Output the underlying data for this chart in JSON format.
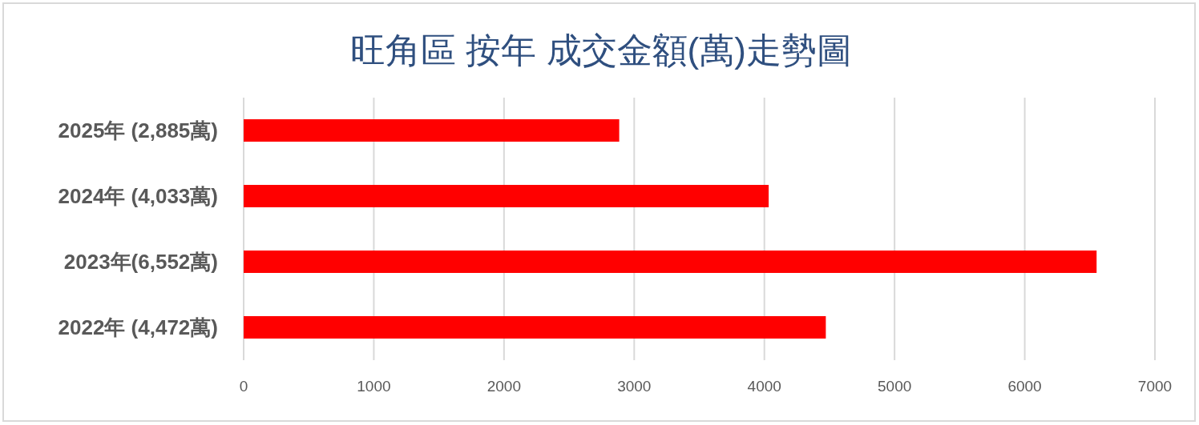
{
  "chart_data": {
    "type": "bar",
    "orientation": "horizontal",
    "title": "旺角區 按年 成交金額(萬)走勢圖",
    "categories": [
      "2025年 (2,885萬)",
      "2024年 (4,033萬)",
      "2023年(6,552萬)",
      "2022年 (4,472萬)"
    ],
    "values": [
      2885,
      4033,
      6552,
      4472
    ],
    "color": "#ff0000",
    "xlim": [
      0,
      7000
    ],
    "xticks": [
      0,
      1000,
      2000,
      3000,
      4000,
      5000,
      6000,
      7000
    ],
    "grid": "x"
  }
}
